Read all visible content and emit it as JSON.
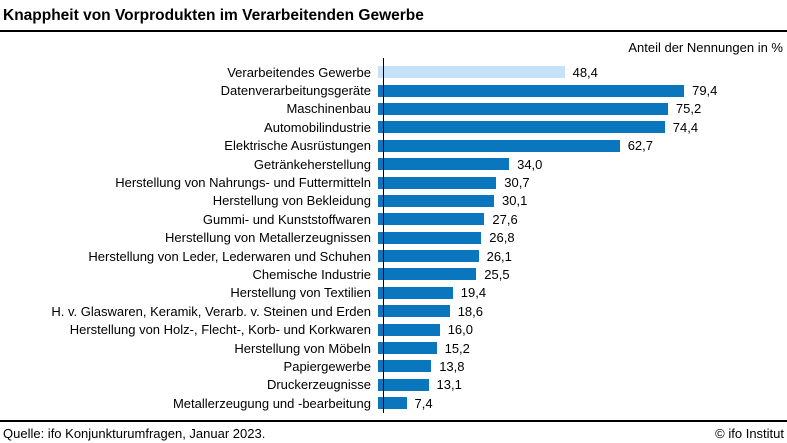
{
  "header": {
    "title": "Knappheit von Vorprodukten im Verarbeitenden Gewerbe",
    "subtitle": "Anteil der Nennungen in %"
  },
  "footer": {
    "source": "Quelle: ifo Konjunkturumfragen, Januar 2023.",
    "copyright": "© ifo Institut"
  },
  "colors": {
    "bar": "#0a76bd",
    "highlight_bar": "#c6e2f8",
    "rule": "#000000"
  },
  "chart_data": {
    "type": "bar",
    "orientation": "horizontal",
    "title": "Knappheit von Vorprodukten im Verarbeitenden Gewerbe",
    "xlabel": "Anteil der Nennungen in %",
    "ylabel": "",
    "xlim": [
      0,
      80
    ],
    "grid": false,
    "legend": "none",
    "value_format": "german-decimal-comma",
    "categories": [
      "Verarbeitendes Gewerbe",
      "Datenverarbeitungsgeräte",
      "Maschinenbau",
      "Automobilindustrie",
      "Elektrische Ausrüstungen",
      "Getränkeherstellung",
      "Herstellung von Nahrungs- und Futtermitteln",
      "Herstellung von Bekleidung",
      "Gummi- und Kunststoffwaren",
      "Herstellung von Metallerzeugnissen",
      "Herstellung von Leder, Lederwaren und Schuhen",
      "Chemische Industrie",
      "Herstellung von Textilien",
      "H. v. Glaswaren, Keramik, Verarb. v. Steinen und Erden",
      "Herstellung von Holz-, Flecht-, Korb- und Korkwaren",
      "Herstellung von Möbeln",
      "Papiergewerbe",
      "Druckerzeugnisse",
      "Metallerzeugung und -bearbeitung"
    ],
    "values": [
      48.4,
      79.4,
      75.2,
      74.4,
      62.7,
      34.0,
      30.7,
      30.1,
      27.6,
      26.8,
      26.1,
      25.5,
      19.4,
      18.6,
      16.0,
      15.2,
      13.8,
      13.1,
      7.4
    ],
    "rows": [
      {
        "label": "Verarbeitendes Gewerbe",
        "value": 48.4,
        "display_value": "48,4",
        "highlighted": true
      },
      {
        "label": "Datenverarbeitungsgeräte",
        "value": 79.4,
        "display_value": "79,4",
        "highlighted": false
      },
      {
        "label": "Maschinenbau",
        "value": 75.2,
        "display_value": "75,2",
        "highlighted": false
      },
      {
        "label": "Automobilindustrie",
        "value": 74.4,
        "display_value": "74,4",
        "highlighted": false
      },
      {
        "label": "Elektrische Ausrüstungen",
        "value": 62.7,
        "display_value": "62,7",
        "highlighted": false
      },
      {
        "label": "Getränkeherstellung",
        "value": 34.0,
        "display_value": "34,0",
        "highlighted": false
      },
      {
        "label": "Herstellung von Nahrungs- und Futtermitteln",
        "value": 30.7,
        "display_value": "30,7",
        "highlighted": false
      },
      {
        "label": "Herstellung von Bekleidung",
        "value": 30.1,
        "display_value": "30,1",
        "highlighted": false
      },
      {
        "label": "Gummi- und Kunststoffwaren",
        "value": 27.6,
        "display_value": "27,6",
        "highlighted": false
      },
      {
        "label": "Herstellung von Metallerzeugnissen",
        "value": 26.8,
        "display_value": "26,8",
        "highlighted": false
      },
      {
        "label": "Herstellung von Leder, Lederwaren und Schuhen",
        "value": 26.1,
        "display_value": "26,1",
        "highlighted": false
      },
      {
        "label": "Chemische Industrie",
        "value": 25.5,
        "display_value": "25,5",
        "highlighted": false
      },
      {
        "label": "Herstellung von Textilien",
        "value": 19.4,
        "display_value": "19,4",
        "highlighted": false
      },
      {
        "label": "H. v. Glaswaren, Keramik, Verarb. v. Steinen und Erden",
        "value": 18.6,
        "display_value": "18,6",
        "highlighted": false
      },
      {
        "label": "Herstellung von Holz-, Flecht-, Korb- und Korkwaren",
        "value": 16.0,
        "display_value": "16,0",
        "highlighted": false
      },
      {
        "label": "Herstellung von Möbeln",
        "value": 15.2,
        "display_value": "15,2",
        "highlighted": false
      },
      {
        "label": "Papiergewerbe",
        "value": 13.8,
        "display_value": "13,8",
        "highlighted": false
      },
      {
        "label": "Druckerzeugnisse",
        "value": 13.1,
        "display_value": "13,1",
        "highlighted": false
      },
      {
        "label": "Metallerzeugung und -bearbeitung",
        "value": 7.4,
        "display_value": "7,4",
        "highlighted": false
      }
    ]
  }
}
